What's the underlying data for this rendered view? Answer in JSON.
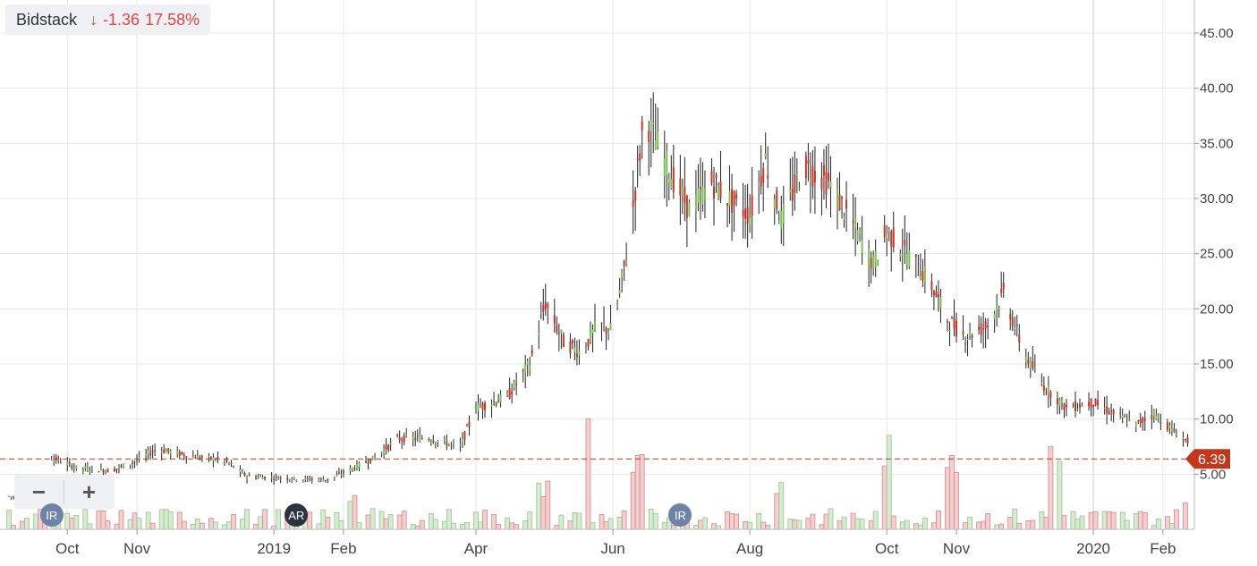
{
  "badge": {
    "name": "Bidstack",
    "change": "-1.36",
    "percent": "17.58%",
    "arrow": "↓"
  },
  "zoom": {
    "minus": "−",
    "plus": "+"
  },
  "events": [
    {
      "label": "IR",
      "color": "#6f83a8",
      "month_pos": "2018-09-24"
    },
    {
      "label": "AR",
      "color": "#2b3340",
      "month_pos": "2019-01-11"
    },
    {
      "label": "IR",
      "color": "#6f83a8",
      "month_pos": "2019-07-01"
    }
  ],
  "colors": {
    "up": "#7fbf5a",
    "down": "#c0392b",
    "wick": "#222222",
    "last_price": "#c0391f",
    "grid": "#e8e8e8"
  },
  "chart_data": {
    "type": "candlestick",
    "title": "",
    "y_ticks": [
      "5.00",
      "10.00",
      "15.00",
      "20.00",
      "25.00",
      "30.00",
      "35.00",
      "40.00",
      "45.00"
    ],
    "x_ticks": [
      "Oct",
      "Nov",
      "2019",
      "Feb",
      "Apr",
      "Jun",
      "Aug",
      "Oct",
      "Nov",
      "2020",
      "Feb"
    ],
    "x_tick_dates": [
      "2018-10-01",
      "2018-11-01",
      "2019-01-01",
      "2019-02-01",
      "2019-04-01",
      "2019-06-01",
      "2019-08-01",
      "2019-10-01",
      "2019-11-01",
      "2020-01-01",
      "2020-02-01"
    ],
    "ylim": [
      0,
      48
    ],
    "xlim": [
      "2018-09-01",
      "2020-02-15"
    ],
    "last_price": "6.39",
    "series": [
      {
        "name": "",
        "points": [
          [
            "2018-09-05",
            3.0
          ],
          [
            "2018-09-20",
            2.5
          ],
          [
            "2018-09-24",
            6.5
          ],
          [
            "2018-10-05",
            5.6
          ],
          [
            "2018-10-20",
            5.3
          ],
          [
            "2018-11-01",
            6.2
          ],
          [
            "2018-11-10",
            7.3
          ],
          [
            "2018-11-25",
            6.6
          ],
          [
            "2018-12-10",
            6.3
          ],
          [
            "2018-12-20",
            4.8
          ],
          [
            "2019-01-10",
            4.6
          ],
          [
            "2019-01-25",
            4.5
          ],
          [
            "2019-02-05",
            5.5
          ],
          [
            "2019-02-15",
            6.5
          ],
          [
            "2019-02-25",
            8.2
          ],
          [
            "2019-03-10",
            8.3
          ],
          [
            "2019-03-25",
            7.5
          ],
          [
            "2019-04-01",
            11.0
          ],
          [
            "2019-04-15",
            12.0
          ],
          [
            "2019-04-25",
            15.0
          ],
          [
            "2019-05-02",
            20.5
          ],
          [
            "2019-05-10",
            17.0
          ],
          [
            "2019-05-18",
            16.0
          ],
          [
            "2019-05-25",
            18.5
          ],
          [
            "2019-06-01",
            18.0
          ],
          [
            "2019-06-08",
            26.0
          ],
          [
            "2019-06-15",
            37.5
          ],
          [
            "2019-06-25",
            33.0
          ],
          [
            "2019-07-05",
            29.0
          ],
          [
            "2019-07-15",
            31.5
          ],
          [
            "2019-07-25",
            29.5
          ],
          [
            "2019-08-01",
            28.5
          ],
          [
            "2019-08-08",
            33.5
          ],
          [
            "2019-08-15",
            28.0
          ],
          [
            "2019-08-25",
            33.0
          ],
          [
            "2019-09-05",
            31.5
          ],
          [
            "2019-09-15",
            28.0
          ],
          [
            "2019-09-25",
            24.0
          ],
          [
            "2019-10-01",
            27.0
          ],
          [
            "2019-10-10",
            25.0
          ],
          [
            "2019-10-20",
            22.5
          ],
          [
            "2019-10-28",
            19.0
          ],
          [
            "2019-11-05",
            17.5
          ],
          [
            "2019-11-15",
            18.5
          ],
          [
            "2019-11-22",
            21.5
          ],
          [
            "2019-12-01",
            16.0
          ],
          [
            "2019-12-10",
            13.0
          ],
          [
            "2019-12-20",
            11.0
          ],
          [
            "2020-01-01",
            11.5
          ],
          [
            "2020-01-10",
            10.5
          ],
          [
            "2020-01-20",
            9.5
          ],
          [
            "2020-01-28",
            10.5
          ],
          [
            "2020-02-05",
            9.0
          ],
          [
            "2020-02-12",
            8.0
          ]
        ]
      }
    ],
    "volume_peaks": [
      [
        "2018-09-24",
        1.5
      ],
      [
        "2019-02-05",
        3.5
      ],
      [
        "2019-05-01",
        4.5
      ],
      [
        "2019-05-20",
        11.5
      ],
      [
        "2019-06-12",
        7.0
      ],
      [
        "2019-08-15",
        5.0
      ],
      [
        "2019-09-30",
        9.0
      ],
      [
        "2019-10-30",
        8.5
      ],
      [
        "2019-12-15",
        9.5
      ],
      [
        "2020-02-12",
        3.0
      ]
    ]
  }
}
